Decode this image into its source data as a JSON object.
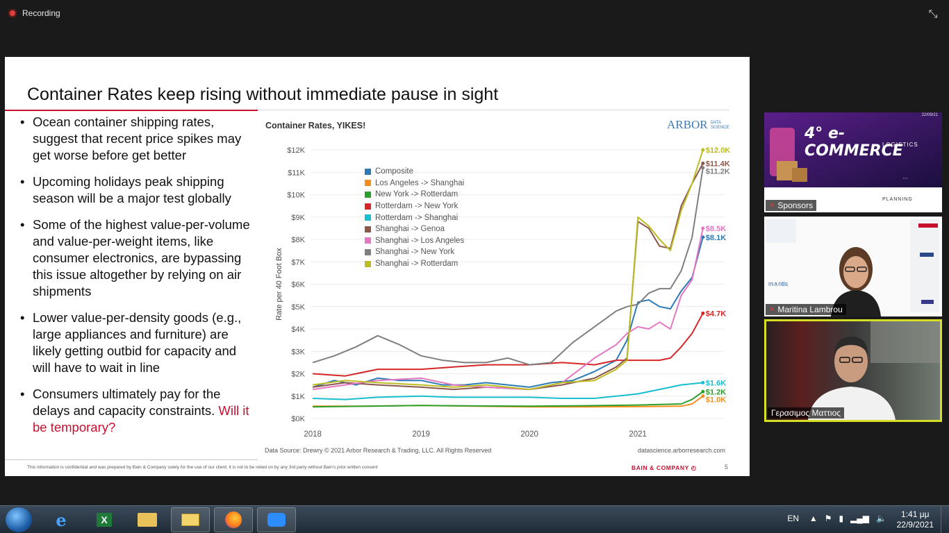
{
  "recording": {
    "label": "Recording"
  },
  "slide": {
    "title": "Container Rates keep rising without immediate pause in sight",
    "bullets": [
      "Ocean container shipping rates, suggest that recent price spikes may get worse before get better",
      "Upcoming holidays peak shipping season will be a major test globally",
      "Some of the highest value-per-volume and value-per-weight items, like consumer electronics, are bypassing this issue altogether by relying on air shipments",
      "Lower value-per-density goods (e.g., large appliances and furniture) are likely getting outbid for capacity and will have to wait in line"
    ],
    "last_bullet": "Consumers ultimately pay for the delays and capacity constraints.",
    "last_bullet_red": "Will it be temporary?",
    "footer_note": "This information is confidential and was prepared by Bain & Company solely for the use of our client; it is not to be relied on by any 3rd party without Bain's prior written consent",
    "bain_logo": "BAIN & COMPANY ◴",
    "page_number": "5"
  },
  "chart_data": {
    "type": "line",
    "title": "Container Rates, YIKES!",
    "brand": "ARBOR",
    "brand_sub1": "DATA",
    "brand_sub2": "SCIENCE",
    "ylabel": "Rate per 40 Foot Box",
    "xlabel": "",
    "ylim": [
      0,
      12000
    ],
    "yticks": [
      "$0K",
      "$1K",
      "$2K",
      "$3K",
      "$4K",
      "$5K",
      "$6K",
      "$7K",
      "$8K",
      "$9K",
      "$10K",
      "$11K",
      "$12K"
    ],
    "xticks": [
      {
        "label": "2018",
        "x": 2018.0
      },
      {
        "label": "2019",
        "x": 2019.0
      },
      {
        "label": "2020",
        "x": 2020.0
      },
      {
        "label": "2021",
        "x": 2021.0
      }
    ],
    "xlim": [
      2017.98,
      2021.8
    ],
    "source": "Data Source: Drewry © 2021 Arbor Research & Trading, LLC. All Rights Reserved",
    "site": "datascience.arborresearch.com",
    "series": [
      {
        "name": "Composite",
        "color": "#2c7bb6",
        "end_label": "$8.1K",
        "points": [
          [
            2018.0,
            1400
          ],
          [
            2018.2,
            1700
          ],
          [
            2018.4,
            1500
          ],
          [
            2018.6,
            1800
          ],
          [
            2018.8,
            1700
          ],
          [
            2019.0,
            1700
          ],
          [
            2019.2,
            1500
          ],
          [
            2019.4,
            1500
          ],
          [
            2019.6,
            1600
          ],
          [
            2019.8,
            1500
          ],
          [
            2020.0,
            1400
          ],
          [
            2020.2,
            1600
          ],
          [
            2020.4,
            1700
          ],
          [
            2020.6,
            2100
          ],
          [
            2020.8,
            2600
          ],
          [
            2020.9,
            3500
          ],
          [
            2021.0,
            5200
          ],
          [
            2021.1,
            5300
          ],
          [
            2021.2,
            5000
          ],
          [
            2021.3,
            4900
          ],
          [
            2021.4,
            5700
          ],
          [
            2021.5,
            6300
          ],
          [
            2021.6,
            8100
          ]
        ]
      },
      {
        "name": "Los Angeles -> Shanghai",
        "color": "#f28e1c",
        "end_label": "$1.0K",
        "points": [
          [
            2018.0,
            550
          ],
          [
            2018.5,
            550
          ],
          [
            2019.0,
            580
          ],
          [
            2019.5,
            550
          ],
          [
            2020.0,
            520
          ],
          [
            2020.5,
            520
          ],
          [
            2021.0,
            530
          ],
          [
            2021.4,
            550
          ],
          [
            2021.5,
            650
          ],
          [
            2021.6,
            1000
          ]
        ]
      },
      {
        "name": "New York -> Rotterdam",
        "color": "#2ca02c",
        "end_label": "$1.2K",
        "points": [
          [
            2018.0,
            520
          ],
          [
            2018.5,
            550
          ],
          [
            2019.0,
            580
          ],
          [
            2019.5,
            560
          ],
          [
            2020.0,
            550
          ],
          [
            2020.5,
            570
          ],
          [
            2021.0,
            600
          ],
          [
            2021.4,
            650
          ],
          [
            2021.5,
            850
          ],
          [
            2021.6,
            1200
          ]
        ]
      },
      {
        "name": "Rotterdam -> New York",
        "color": "#d62728",
        "end_label": "$4.7K",
        "points": [
          [
            2018.0,
            2000
          ],
          [
            2018.3,
            1900
          ],
          [
            2018.6,
            2200
          ],
          [
            2019.0,
            2200
          ],
          [
            2019.3,
            2300
          ],
          [
            2019.6,
            2400
          ],
          [
            2020.0,
            2400
          ],
          [
            2020.3,
            2500
          ],
          [
            2020.6,
            2400
          ],
          [
            2020.8,
            2600
          ],
          [
            2021.0,
            2600
          ],
          [
            2021.2,
            2600
          ],
          [
            2021.3,
            2700
          ],
          [
            2021.4,
            3200
          ],
          [
            2021.5,
            3800
          ],
          [
            2021.6,
            4700
          ]
        ]
      },
      {
        "name": "Rotterdam -> Shanghai",
        "color": "#17becf",
        "end_label": "$1.6K",
        "points": [
          [
            2018.0,
            900
          ],
          [
            2018.3,
            850
          ],
          [
            2018.6,
            950
          ],
          [
            2019.0,
            1000
          ],
          [
            2019.3,
            950
          ],
          [
            2019.6,
            950
          ],
          [
            2020.0,
            950
          ],
          [
            2020.3,
            900
          ],
          [
            2020.6,
            900
          ],
          [
            2020.8,
            1000
          ],
          [
            2021.0,
            1100
          ],
          [
            2021.2,
            1300
          ],
          [
            2021.4,
            1500
          ],
          [
            2021.6,
            1600
          ]
        ]
      },
      {
        "name": "Shanghai -> Genoa",
        "color": "#8c564b",
        "end_label": "$11.4K",
        "points": [
          [
            2018.0,
            1400
          ],
          [
            2018.3,
            1600
          ],
          [
            2018.6,
            1500
          ],
          [
            2019.0,
            1400
          ],
          [
            2019.3,
            1300
          ],
          [
            2019.6,
            1400
          ],
          [
            2020.0,
            1300
          ],
          [
            2020.3,
            1500
          ],
          [
            2020.6,
            1800
          ],
          [
            2020.8,
            2300
          ],
          [
            2020.9,
            2700
          ],
          [
            2021.0,
            8800
          ],
          [
            2021.1,
            8500
          ],
          [
            2021.2,
            7700
          ],
          [
            2021.3,
            7600
          ],
          [
            2021.4,
            9500
          ],
          [
            2021.5,
            10500
          ],
          [
            2021.6,
            11400
          ]
        ]
      },
      {
        "name": "Shanghai -> Los Angeles",
        "color": "#e377c2",
        "end_label": "$8.5K",
        "points": [
          [
            2018.0,
            1300
          ],
          [
            2018.3,
            1500
          ],
          [
            2018.6,
            1700
          ],
          [
            2019.0,
            1800
          ],
          [
            2019.3,
            1500
          ],
          [
            2019.6,
            1400
          ],
          [
            2020.0,
            1300
          ],
          [
            2020.3,
            1600
          ],
          [
            2020.6,
            2700
          ],
          [
            2020.8,
            3300
          ],
          [
            2020.9,
            3800
          ],
          [
            2021.0,
            4100
          ],
          [
            2021.1,
            4000
          ],
          [
            2021.2,
            4300
          ],
          [
            2021.3,
            4000
          ],
          [
            2021.4,
            5500
          ],
          [
            2021.5,
            6200
          ],
          [
            2021.6,
            8500
          ]
        ]
      },
      {
        "name": "Shanghai -> New York",
        "color": "#7f7f7f",
        "end_label": "$11.2K",
        "points": [
          [
            2018.0,
            2500
          ],
          [
            2018.2,
            2800
          ],
          [
            2018.4,
            3200
          ],
          [
            2018.6,
            3700
          ],
          [
            2018.8,
            3300
          ],
          [
            2019.0,
            2800
          ],
          [
            2019.2,
            2600
          ],
          [
            2019.4,
            2500
          ],
          [
            2019.6,
            2500
          ],
          [
            2019.8,
            2700
          ],
          [
            2020.0,
            2400
          ],
          [
            2020.2,
            2500
          ],
          [
            2020.4,
            3400
          ],
          [
            2020.6,
            4100
          ],
          [
            2020.8,
            4800
          ],
          [
            2020.9,
            5000
          ],
          [
            2021.0,
            5100
          ],
          [
            2021.1,
            5600
          ],
          [
            2021.2,
            5800
          ],
          [
            2021.3,
            5800
          ],
          [
            2021.4,
            6600
          ],
          [
            2021.5,
            8100
          ],
          [
            2021.6,
            11200
          ]
        ]
      },
      {
        "name": "Shanghai -> Rotterdam",
        "color": "#bcbd22",
        "end_label": "$12.0K",
        "points": [
          [
            2018.0,
            1500
          ],
          [
            2018.3,
            1700
          ],
          [
            2018.6,
            1600
          ],
          [
            2019.0,
            1500
          ],
          [
            2019.3,
            1400
          ],
          [
            2019.6,
            1500
          ],
          [
            2020.0,
            1300
          ],
          [
            2020.3,
            1600
          ],
          [
            2020.6,
            1700
          ],
          [
            2020.8,
            2200
          ],
          [
            2020.9,
            2600
          ],
          [
            2021.0,
            9000
          ],
          [
            2021.1,
            8600
          ],
          [
            2021.2,
            8000
          ],
          [
            2021.3,
            7500
          ],
          [
            2021.4,
            9300
          ],
          [
            2021.5,
            10500
          ],
          [
            2021.6,
            12000
          ]
        ]
      }
    ]
  },
  "participants": [
    {
      "name": "Sponsors",
      "banner_title": "4° e-COMMERCE",
      "banner_sub": "LOGISTICS",
      "banner_date": "22/09/21",
      "sponsor1": "PLANNING"
    },
    {
      "name": "Maritina Lambrou"
    },
    {
      "name": "Γερασιμος Ματτιος"
    }
  ],
  "taskbar": {
    "language": "EN",
    "time": "1:41 μμ",
    "date": "22/9/2021",
    "apps": [
      "Internet Explorer",
      "Excel",
      "File Explorer",
      "Outlook",
      "Firefox",
      "Zoom"
    ]
  },
  "colors": {
    "accent_red": "#c8102e",
    "active_speaker": "#d6df26"
  }
}
